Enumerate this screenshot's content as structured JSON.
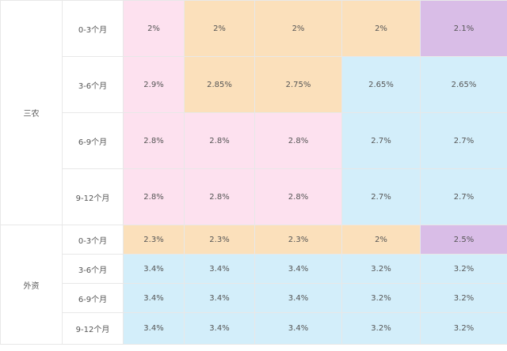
{
  "categories": [
    {
      "label": "三农",
      "rows": [
        {
          "term": "0-3个月",
          "rates": [
            "2%",
            "2%",
            "2%",
            "2%",
            "2.1%"
          ],
          "colors": [
            "pink",
            "orange",
            "orange",
            "orange",
            "purple"
          ]
        },
        {
          "term": "3-6个月",
          "rates": [
            "2.9%",
            "2.85%",
            "2.75%",
            "2.65%",
            "2.65%"
          ],
          "colors": [
            "pink",
            "orange",
            "orange",
            "blue",
            "blue"
          ]
        },
        {
          "term": "6-9个月",
          "rates": [
            "2.8%",
            "2.8%",
            "2.8%",
            "2.7%",
            "2.7%"
          ],
          "colors": [
            "pink",
            "pink",
            "pink",
            "blue",
            "blue"
          ]
        },
        {
          "term": "9-12个月",
          "rates": [
            "2.8%",
            "2.8%",
            "2.8%",
            "2.7%",
            "2.7%"
          ],
          "colors": [
            "pink",
            "pink",
            "pink",
            "blue",
            "blue"
          ]
        }
      ]
    },
    {
      "label": "外资",
      "rows": [
        {
          "term": "0-3个月",
          "rates": [
            "2.3%",
            "2.3%",
            "2.3%",
            "2%",
            "2.5%"
          ],
          "colors": [
            "orange",
            "orange",
            "orange",
            "orange",
            "purple"
          ]
        },
        {
          "term": "3-6个月",
          "rates": [
            "3.4%",
            "3.4%",
            "3.4%",
            "3.2%",
            "3.2%"
          ],
          "colors": [
            "blue",
            "blue",
            "blue",
            "blue",
            "blue"
          ]
        },
        {
          "term": "6-9个月",
          "rates": [
            "3.4%",
            "3.4%",
            "3.4%",
            "3.2%",
            "3.2%"
          ],
          "colors": [
            "blue",
            "blue",
            "blue",
            "blue",
            "blue"
          ]
        },
        {
          "term": "9-12个月",
          "rates": [
            "3.4%",
            "3.4%",
            "3.4%",
            "3.2%",
            "3.2%"
          ],
          "colors": [
            "blue",
            "blue",
            "blue",
            "blue",
            "blue"
          ]
        }
      ]
    }
  ],
  "palette": {
    "pink": "#fde1ef",
    "orange": "#fbe0bb",
    "blue": "#d3eefa",
    "purple": "#d9bde7"
  }
}
